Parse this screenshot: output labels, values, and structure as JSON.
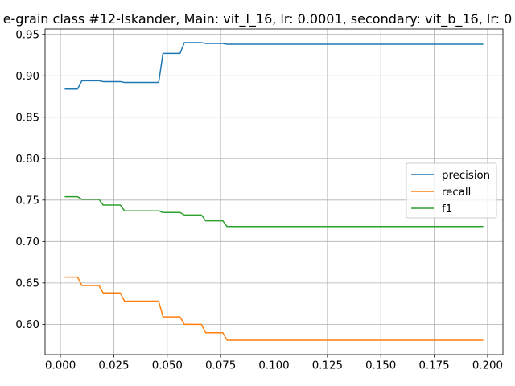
{
  "chart_data": {
    "type": "line",
    "title": "e-grain class #12-Iskander, Main: vit_l_16, lr: 0.0001, secondary: vit_b_16, lr: 0",
    "xlabel": "",
    "ylabel": "",
    "xlim": [
      -0.0072,
      0.2072
    ],
    "ylim": [
      0.5635,
      0.9565
    ],
    "xticks": [
      0.0,
      0.025,
      0.05,
      0.075,
      0.1,
      0.125,
      0.15,
      0.175,
      0.2
    ],
    "xtick_labels": [
      "0.000",
      "0.025",
      "0.050",
      "0.075",
      "0.100",
      "0.125",
      "0.150",
      "0.175",
      "0.200"
    ],
    "yticks": [
      0.6,
      0.65,
      0.7,
      0.75,
      0.8,
      0.85,
      0.9,
      0.95
    ],
    "ytick_labels": [
      "0.60",
      "0.65",
      "0.70",
      "0.75",
      "0.80",
      "0.85",
      "0.90",
      "0.95"
    ],
    "grid": true,
    "legend_position": "center-right",
    "series": [
      {
        "name": "precision",
        "color": "#1f77b4",
        "x": [
          0.002,
          0.008,
          0.01,
          0.018,
          0.02,
          0.028,
          0.03,
          0.046,
          0.048,
          0.056,
          0.058,
          0.066,
          0.068,
          0.076,
          0.078,
          0.198
        ],
        "y": [
          0.884,
          0.884,
          0.894,
          0.894,
          0.893,
          0.893,
          0.892,
          0.892,
          0.927,
          0.927,
          0.94,
          0.94,
          0.939,
          0.939,
          0.938,
          0.938
        ]
      },
      {
        "name": "recall",
        "color": "#ff7f0e",
        "x": [
          0.002,
          0.008,
          0.01,
          0.018,
          0.02,
          0.028,
          0.03,
          0.046,
          0.048,
          0.056,
          0.058,
          0.066,
          0.068,
          0.076,
          0.078,
          0.198
        ],
        "y": [
          0.657,
          0.657,
          0.647,
          0.647,
          0.638,
          0.638,
          0.628,
          0.628,
          0.609,
          0.609,
          0.6,
          0.6,
          0.59,
          0.59,
          0.581,
          0.581
        ]
      },
      {
        "name": "f1",
        "color": "#2ca02c",
        "x": [
          0.002,
          0.008,
          0.01,
          0.018,
          0.02,
          0.028,
          0.03,
          0.046,
          0.048,
          0.056,
          0.058,
          0.066,
          0.068,
          0.076,
          0.078,
          0.198
        ],
        "y": [
          0.754,
          0.754,
          0.751,
          0.751,
          0.744,
          0.744,
          0.737,
          0.737,
          0.735,
          0.735,
          0.732,
          0.732,
          0.725,
          0.725,
          0.718,
          0.718
        ]
      }
    ]
  }
}
